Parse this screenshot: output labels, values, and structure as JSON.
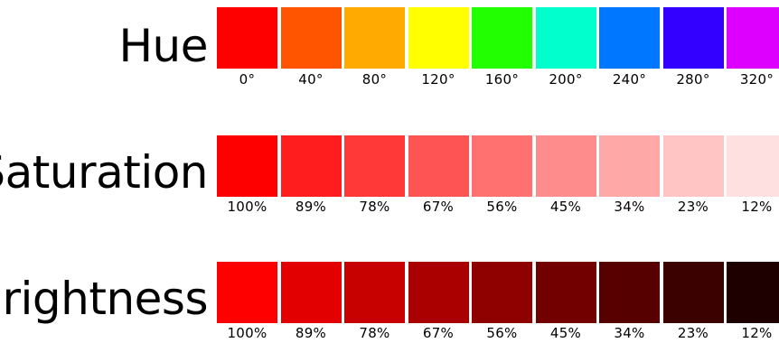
{
  "rows": [
    {
      "id": "hue",
      "title": "Hue",
      "swatches": [
        {
          "label": "0°",
          "color": "#ff0000"
        },
        {
          "label": "40°",
          "color": "#ff5500"
        },
        {
          "label": "80°",
          "color": "#ffaa00"
        },
        {
          "label": "120°",
          "color": "#ffff00"
        },
        {
          "label": "160°",
          "color": "#22ff00"
        },
        {
          "label": "200°",
          "color": "#00ffcc"
        },
        {
          "label": "240°",
          "color": "#0077ff"
        },
        {
          "label": "280°",
          "color": "#3300ff"
        },
        {
          "label": "320°",
          "color": "#dd00ff"
        }
      ]
    },
    {
      "id": "saturation",
      "title": "Saturation",
      "swatches": [
        {
          "label": "100%",
          "color": "#ff0000"
        },
        {
          "label": "89%",
          "color": "#ff1d1d"
        },
        {
          "label": "78%",
          "color": "#ff3838"
        },
        {
          "label": "67%",
          "color": "#ff5454"
        },
        {
          "label": "56%",
          "color": "#ff7070"
        },
        {
          "label": "45%",
          "color": "#ff8c8c"
        },
        {
          "label": "34%",
          "color": "#ffa8a8"
        },
        {
          "label": "23%",
          "color": "#ffc4c4"
        },
        {
          "label": "12%",
          "color": "#ffe0e0"
        }
      ]
    },
    {
      "id": "brightness",
      "title": "Brightness",
      "swatches": [
        {
          "label": "100%",
          "color": "#ff0000"
        },
        {
          "label": "89%",
          "color": "#e30000"
        },
        {
          "label": "78%",
          "color": "#c70000"
        },
        {
          "label": "67%",
          "color": "#ab0000"
        },
        {
          "label": "56%",
          "color": "#8f0000"
        },
        {
          "label": "45%",
          "color": "#730000"
        },
        {
          "label": "34%",
          "color": "#570000"
        },
        {
          "label": "23%",
          "color": "#3b0000"
        },
        {
          "label": "12%",
          "color": "#1f0000"
        }
      ]
    }
  ]
}
